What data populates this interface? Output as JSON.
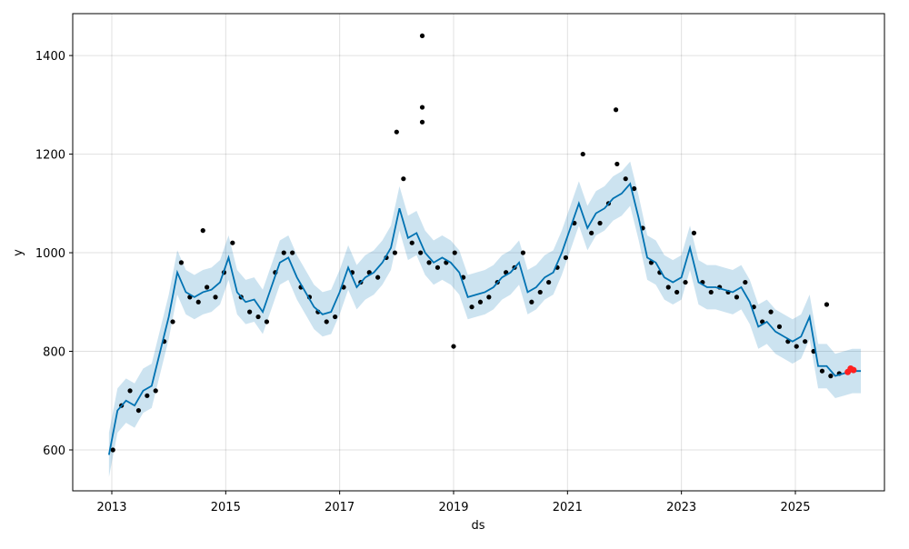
{
  "chart_data": {
    "type": "line",
    "xlabel": "ds",
    "ylabel": "y",
    "xlim": [
      2012.314,
      2026.564
    ],
    "ylim": [
      517,
      1485
    ],
    "xticks": [
      2013,
      2015,
      2017,
      2019,
      2021,
      2023,
      2025
    ],
    "yticks": [
      600,
      800,
      1000,
      1200,
      1400
    ],
    "grid": true,
    "color": "#0072B2",
    "band_color": "#0072B2",
    "x": [
      2012.95,
      2013.1,
      2013.25,
      2013.4,
      2013.55,
      2013.7,
      2013.85,
      2014.0,
      2014.15,
      2014.3,
      2014.45,
      2014.6,
      2014.75,
      2014.9,
      2015.05,
      2015.2,
      2015.35,
      2015.5,
      2015.65,
      2015.8,
      2015.95,
      2016.1,
      2016.25,
      2016.4,
      2016.55,
      2016.7,
      2016.85,
      2017.0,
      2017.15,
      2017.3,
      2017.45,
      2017.6,
      2017.75,
      2017.9,
      2018.05,
      2018.2,
      2018.35,
      2018.5,
      2018.65,
      2018.8,
      2018.95,
      2019.1,
      2019.25,
      2019.4,
      2019.55,
      2019.7,
      2019.85,
      2020.0,
      2020.15,
      2020.3,
      2020.45,
      2020.6,
      2020.75,
      2020.9,
      2021.05,
      2021.2,
      2021.35,
      2021.5,
      2021.65,
      2021.8,
      2021.95,
      2022.1,
      2022.25,
      2022.4,
      2022.55,
      2022.7,
      2022.85,
      2023.0,
      2023.15,
      2023.3,
      2023.45,
      2023.6,
      2023.75,
      2023.9,
      2024.05,
      2024.2,
      2024.35,
      2024.5,
      2024.65,
      2024.8,
      2024.95,
      2025.1,
      2025.25,
      2025.4,
      2025.55,
      2025.7,
      2025.85,
      2026.0,
      2026.15
    ],
    "values": [
      590,
      680,
      700,
      690,
      720,
      730,
      800,
      870,
      960,
      920,
      910,
      920,
      925,
      940,
      990,
      920,
      900,
      905,
      880,
      930,
      980,
      990,
      950,
      920,
      890,
      875,
      880,
      920,
      970,
      930,
      950,
      960,
      980,
      1010,
      1090,
      1030,
      1040,
      1000,
      980,
      990,
      980,
      960,
      910,
      915,
      920,
      930,
      950,
      960,
      980,
      920,
      930,
      950,
      960,
      1000,
      1050,
      1100,
      1050,
      1080,
      1090,
      1110,
      1120,
      1140,
      1070,
      990,
      980,
      950,
      940,
      950,
      1010,
      940,
      930,
      930,
      925,
      920,
      930,
      900,
      850,
      860,
      840,
      830,
      820,
      830,
      870,
      770,
      770,
      750,
      755,
      760,
      760
    ],
    "lower": [
      545,
      635,
      655,
      645,
      675,
      685,
      755,
      825,
      915,
      875,
      865,
      875,
      880,
      895,
      945,
      875,
      855,
      860,
      835,
      885,
      935,
      945,
      905,
      875,
      845,
      830,
      835,
      875,
      925,
      885,
      905,
      915,
      935,
      965,
      1045,
      985,
      995,
      955,
      935,
      945,
      935,
      915,
      865,
      870,
      875,
      885,
      905,
      915,
      935,
      875,
      885,
      905,
      915,
      955,
      1005,
      1055,
      1005,
      1035,
      1045,
      1065,
      1075,
      1095,
      1025,
      945,
      935,
      905,
      895,
      905,
      965,
      895,
      885,
      885,
      880,
      875,
      885,
      855,
      805,
      815,
      795,
      785,
      775,
      785,
      825,
      725,
      725,
      705,
      710,
      715,
      715
    ],
    "upper": [
      635,
      725,
      745,
      735,
      765,
      775,
      845,
      915,
      1005,
      965,
      955,
      965,
      970,
      985,
      1035,
      965,
      945,
      950,
      925,
      975,
      1025,
      1035,
      995,
      965,
      935,
      920,
      925,
      965,
      1015,
      975,
      995,
      1005,
      1025,
      1055,
      1135,
      1075,
      1085,
      1045,
      1025,
      1035,
      1025,
      1005,
      955,
      960,
      965,
      975,
      995,
      1005,
      1025,
      965,
      975,
      995,
      1005,
      1045,
      1095,
      1145,
      1095,
      1125,
      1135,
      1155,
      1165,
      1185,
      1115,
      1035,
      1025,
      995,
      985,
      995,
      1055,
      985,
      975,
      975,
      970,
      965,
      975,
      945,
      895,
      905,
      885,
      875,
      865,
      875,
      915,
      815,
      815,
      795,
      800,
      805,
      805
    ],
    "points": {
      "color": "#000000",
      "x": [
        2013.02,
        2013.17,
        2013.32,
        2013.47,
        2013.62,
        2013.77,
        2013.92,
        2014.07,
        2014.22,
        2014.37,
        2014.52,
        2014.67,
        2014.82,
        2014.97,
        2015.12,
        2015.27,
        2015.42,
        2015.57,
        2015.72,
        2015.87,
        2016.02,
        2016.17,
        2016.32,
        2016.47,
        2016.62,
        2016.77,
        2016.92,
        2017.07,
        2017.22,
        2017.37,
        2017.52,
        2017.67,
        2017.82,
        2017.97,
        2018.12,
        2018.27,
        2018.42,
        2018.57,
        2018.72,
        2018.87,
        2019.02,
        2019.17,
        2019.32,
        2019.47,
        2019.62,
        2019.77,
        2019.92,
        2020.07,
        2020.22,
        2020.37,
        2020.52,
        2020.67,
        2020.82,
        2020.97,
        2021.12,
        2021.27,
        2021.42,
        2021.57,
        2021.72,
        2021.87,
        2022.02,
        2022.17,
        2022.32,
        2022.47,
        2022.62,
        2022.77,
        2022.92,
        2023.07,
        2023.22,
        2023.37,
        2023.52,
        2023.67,
        2023.82,
        2023.97,
        2024.12,
        2024.27,
        2024.42,
        2024.57,
        2024.72,
        2024.87,
        2025.02,
        2025.17,
        2025.32,
        2025.47,
        2025.62,
        2025.77,
        2018.45,
        2018.45,
        2018.0,
        2021.85,
        2019.0,
        2025.55,
        2014.6,
        2018.45
      ],
      "values": [
        600,
        690,
        720,
        680,
        710,
        720,
        820,
        860,
        980,
        910,
        900,
        930,
        910,
        960,
        1020,
        910,
        880,
        870,
        860,
        960,
        1000,
        1000,
        930,
        910,
        880,
        860,
        870,
        930,
        960,
        940,
        960,
        950,
        990,
        1000,
        1150,
        1020,
        1000,
        980,
        970,
        980,
        1000,
        950,
        890,
        900,
        910,
        940,
        960,
        970,
        1000,
        900,
        920,
        940,
        970,
        990,
        1060,
        1200,
        1040,
        1060,
        1100,
        1180,
        1150,
        1130,
        1050,
        980,
        960,
        930,
        920,
        940,
        1040,
        940,
        920,
        930,
        920,
        910,
        940,
        890,
        860,
        880,
        850,
        820,
        810,
        820,
        800,
        760,
        750,
        755,
        1440,
        1295,
        1245,
        1290,
        810,
        895,
        1045,
        1265
      ]
    },
    "highlight": {
      "color": "#ff2020",
      "x": [
        2025.92,
        2025.97,
        2026.02
      ],
      "values": [
        758,
        765,
        762
      ]
    }
  }
}
